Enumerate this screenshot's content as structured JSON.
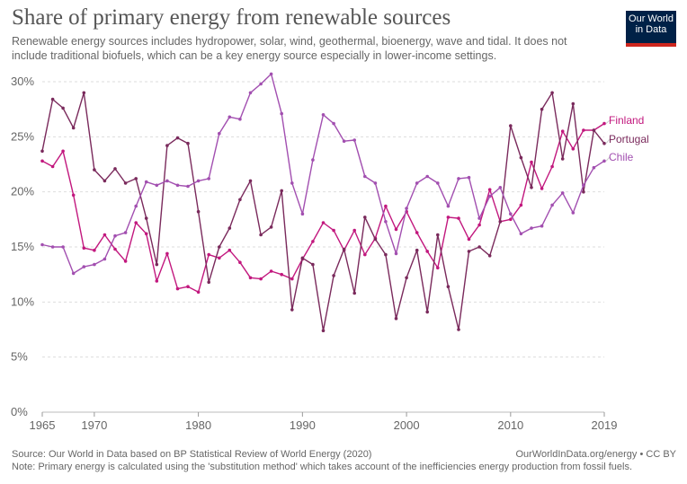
{
  "title": "Share of primary energy from renewable sources",
  "subtitle": "Renewable energy sources includes hydropower, solar, wind, geothermal, bioenergy, wave and tidal. It does not include traditional biofuels, which can be a key energy source especially in lower-income settings.",
  "logo": {
    "line1": "Our World",
    "line2": "in Data"
  },
  "footer": {
    "source": "Source: Our World in Data based on BP Statistical Review of World Energy (2020)",
    "attribution": "OurWorldInData.org/energy • CC BY",
    "note": "Note: Primary energy is calculated using the 'substitution method' which takes account of the inefficiencies energy production from fossil fuels."
  },
  "colors": {
    "Finland": "#c2187e",
    "Portugal": "#7a2a5c",
    "Chile": "#a24fb0",
    "grid": "#dddddd",
    "axis": "#666666"
  },
  "chart_data": {
    "type": "line",
    "title": "Share of primary energy from renewable sources",
    "ylim": [
      0,
      30
    ],
    "yticks": [
      0,
      5,
      10,
      15,
      20,
      25,
      30
    ],
    "ytick_labels": [
      "0%",
      "5%",
      "10%",
      "15%",
      "20%",
      "25%",
      "30%"
    ],
    "xlim": [
      1965,
      2019
    ],
    "xticks": [
      1965,
      1970,
      1980,
      1990,
      2000,
      2010,
      2019
    ],
    "grid": true,
    "legend": "right, labels at line ends",
    "x": [
      1965,
      1966,
      1967,
      1968,
      1969,
      1970,
      1971,
      1972,
      1973,
      1974,
      1975,
      1976,
      1977,
      1978,
      1979,
      1980,
      1981,
      1982,
      1983,
      1984,
      1985,
      1986,
      1987,
      1988,
      1989,
      1990,
      1991,
      1992,
      1993,
      1994,
      1995,
      1996,
      1997,
      1998,
      1999,
      2000,
      2001,
      2002,
      2003,
      2004,
      2005,
      2006,
      2007,
      2008,
      2009,
      2010,
      2011,
      2012,
      2013,
      2014,
      2015,
      2016,
      2017,
      2018,
      2019
    ],
    "series": [
      {
        "name": "Finland",
        "values": [
          22.8,
          22.3,
          23.7,
          19.7,
          14.9,
          14.7,
          16.1,
          14.8,
          13.7,
          17.2,
          16.2,
          11.9,
          14.4,
          11.2,
          11.4,
          10.9,
          14.3,
          14.0,
          14.7,
          13.6,
          12.2,
          12.1,
          12.8,
          12.5,
          12.1,
          13.9,
          15.5,
          17.2,
          16.5,
          14.7,
          16.5,
          14.3,
          15.8,
          18.7,
          16.6,
          18.2,
          16.3,
          14.6,
          13.1,
          17.7,
          17.6,
          15.7,
          17.0,
          20.2,
          17.3,
          17.5,
          18.8,
          22.7,
          20.3,
          22.3,
          25.5,
          23.9,
          25.6,
          25.6,
          26.2
        ]
      },
      {
        "name": "Portugal",
        "values": [
          23.7,
          28.4,
          27.6,
          25.8,
          29.0,
          22.0,
          21.0,
          22.1,
          20.8,
          21.2,
          17.6,
          13.4,
          24.2,
          24.9,
          24.4,
          18.2,
          11.8,
          15.0,
          16.7,
          19.3,
          21.0,
          16.1,
          16.8,
          20.1,
          9.3,
          14.0,
          13.4,
          7.4,
          12.4,
          14.8,
          10.8,
          17.7,
          15.7,
          14.3,
          8.5,
          12.2,
          14.7,
          9.1,
          16.1,
          11.4,
          7.5,
          14.6,
          15.0,
          14.2,
          17.3,
          26.0,
          23.1,
          20.4,
          27.5,
          29.0,
          23.0,
          28.0,
          20.0,
          25.6,
          24.4
        ]
      },
      {
        "name": "Chile",
        "values": [
          15.2,
          15.0,
          15.0,
          12.6,
          13.2,
          13.4,
          13.9,
          16.0,
          16.3,
          18.7,
          20.9,
          20.6,
          21.0,
          20.6,
          20.5,
          21.0,
          21.2,
          25.3,
          26.8,
          26.6,
          29.0,
          29.8,
          30.7,
          27.1,
          20.8,
          18.0,
          22.9,
          27.0,
          26.2,
          24.6,
          24.7,
          21.4,
          20.8,
          17.3,
          14.4,
          18.5,
          20.8,
          21.4,
          20.8,
          18.7,
          21.2,
          21.3,
          17.6,
          19.6,
          20.4,
          18.0,
          16.2,
          16.7,
          16.9,
          18.8,
          19.9,
          18.1,
          20.6,
          22.2,
          22.8
        ]
      }
    ]
  }
}
